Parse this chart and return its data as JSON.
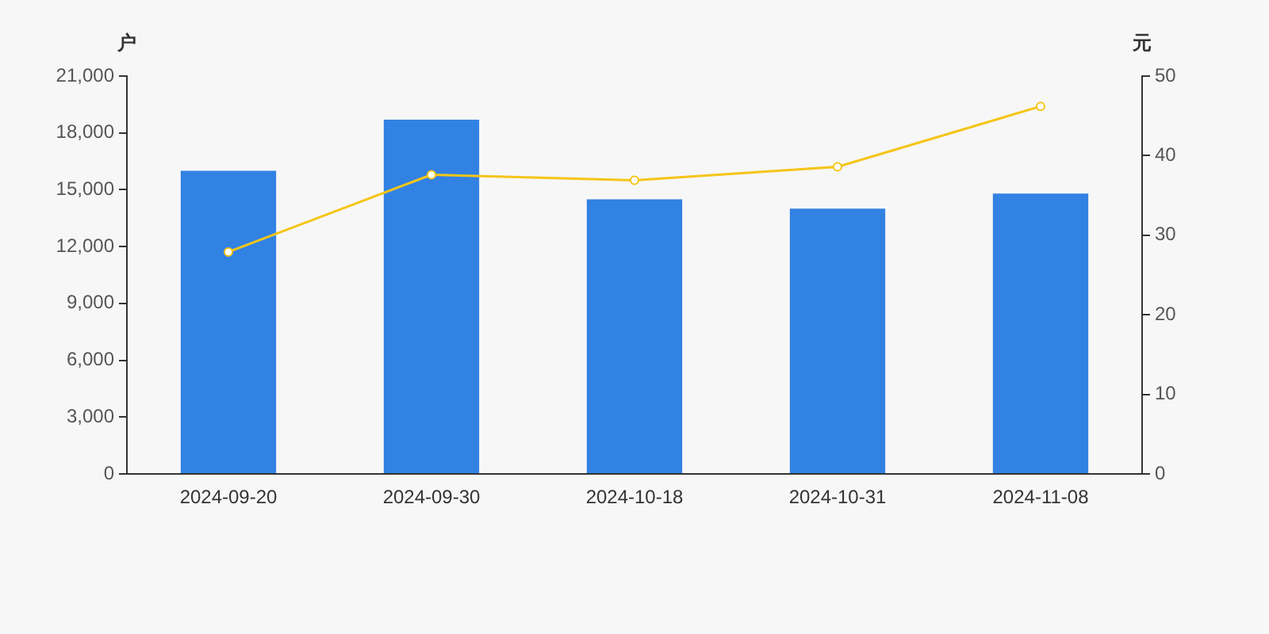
{
  "chart_data": {
    "type": "bar",
    "categories": [
      "2024-09-20",
      "2024-09-30",
      "2024-10-18",
      "2024-10-31",
      "2024-11-08"
    ],
    "ylabel": "户",
    "y2label": "元",
    "ylim": [
      0,
      21000
    ],
    "yticks": [
      0,
      {
        "value": 3000,
        "label": "3,000"
      },
      {
        "value": 6000,
        "label": "6,000"
      },
      {
        "value": 9000,
        "label": "9,000"
      },
      {
        "value": 12000,
        "label": "12,000"
      },
      {
        "value": 15000,
        "label": "15,000"
      },
      {
        "value": 18000,
        "label": "18,000"
      },
      {
        "value": 21000,
        "label": "21,000"
      }
    ],
    "y2lim": [
      0,
      50
    ],
    "y2ticks": [
      0,
      10,
      20,
      30,
      40,
      50
    ],
    "grid": false,
    "legend": false,
    "series": [
      {
        "color": "#3282e3",
        "values": [
          16000,
          18700,
          14500,
          14000,
          14800
        ]
      },
      {
        "type": "line",
        "axis": "y2",
        "color": "#f5c518",
        "marker": "circle",
        "values": [
          27.9,
          37.6,
          36.9,
          38.6,
          46.2
        ]
      }
    ]
  }
}
